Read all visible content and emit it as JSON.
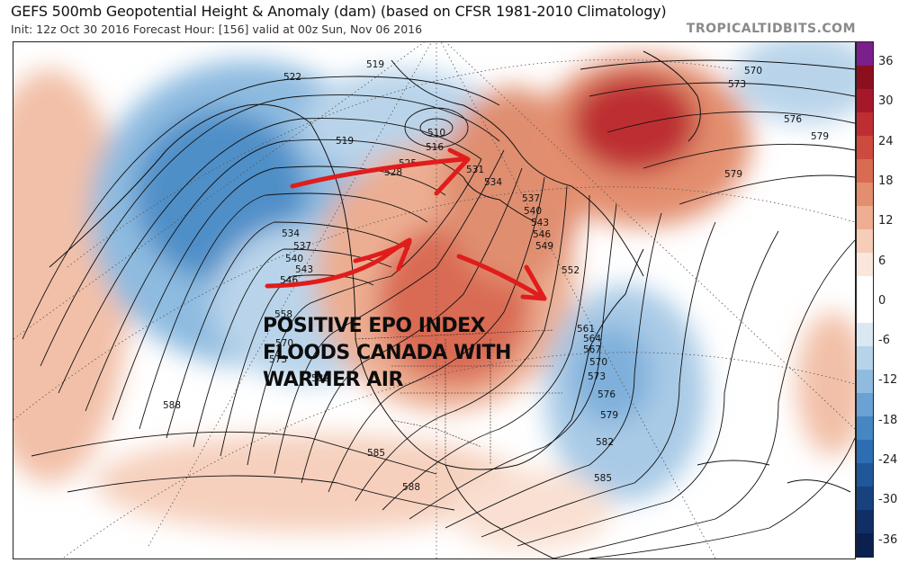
{
  "header": {
    "title": "GEFS 500mb Geopotential Height & Anomaly (dam) (based on CFSR 1981-2010 Climatology)",
    "subtitle": "Init: 12z Oct 30 2016   Forecast Hour: [156]   valid at 00z Sun, Nov 06 2016",
    "brand": "TROPICALTIDBITS.COM"
  },
  "annotation": {
    "lines": [
      "POSITIVE EPO INDEX",
      "FLOODS CANADA WITH",
      "WARMER AIR"
    ]
  },
  "colorbar": {
    "labels": [
      "36",
      "30",
      "24",
      "18",
      "12",
      "6",
      "0",
      "-6",
      "-12",
      "-18",
      "-24",
      "-30",
      "-36"
    ],
    "colors": [
      "#7a1f8c",
      "#8b0f1e",
      "#a5182a",
      "#bd2e33",
      "#cc4a3e",
      "#d96b52",
      "#e38e6e",
      "#eeae92",
      "#f6cdb9",
      "#fbe6dc",
      "#ffffff",
      "#ffffff",
      "#d9e8f3",
      "#b7d3ea",
      "#8fbbdf",
      "#6aa2d3",
      "#4686c3",
      "#2d6eb2",
      "#1f5799",
      "#17427f",
      "#0f2f66",
      "#0a2050"
    ]
  },
  "contour_labels": [
    "519",
    "522",
    "510",
    "516",
    "519",
    "525",
    "528",
    "531",
    "534",
    "537",
    "540",
    "543",
    "546",
    "549",
    "552",
    "534",
    "537",
    "540",
    "543",
    "546",
    "558",
    "570",
    "573",
    "582",
    "588",
    "561",
    "564",
    "567",
    "570",
    "573",
    "576",
    "579",
    "582",
    "585",
    "585",
    "588",
    "570",
    "573",
    "576",
    "579",
    "579"
  ],
  "colors": {
    "arrow": "#e01c1c",
    "warm_anomaly": "#d9534a",
    "cold_anomaly": "#4a8cc8",
    "contour": "#111111"
  }
}
